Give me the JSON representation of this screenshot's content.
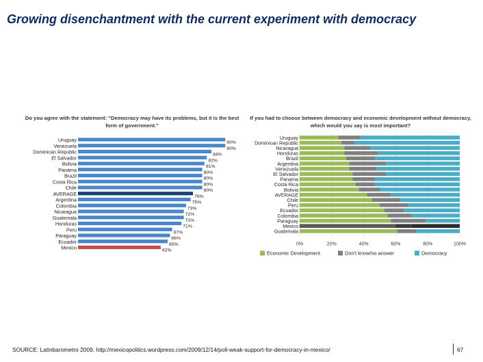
{
  "slide": {
    "title": "Growing disenchantment with the current experiment with democracy",
    "source": "SOURCE: Latinbarometro 2009, http://mexicopolitics.wordpress.com/2009/12/14/poll-weak-support-for-democracy-in-mexico/",
    "page_number": "67"
  },
  "colors": {
    "bar_blue": "#4a87c8",
    "bar_average": "#1d3f73",
    "bar_mexico": "#c0504d",
    "economic_development": "#9bbb59",
    "dont_know": "#7f7f7f",
    "democracy": "#4bacc6"
  },
  "chart_data": [
    {
      "type": "bar",
      "orientation": "horizontal",
      "title": "Do you agree with the statement: \"Democracy may have its problems, but it is the best form of government.\"",
      "categories": [
        "Uruguay",
        "Venezuela",
        "Dominican Republic",
        "El Salvador",
        "Bolivia",
        "Panama",
        "Brazil",
        "Costa Rica",
        "Chile",
        "AVERAGE",
        "Argentina",
        "Colombia",
        "Nicaragua",
        "Guatemala",
        "Honduras",
        "Peru",
        "Paraguay",
        "Ecuador",
        "Mexico"
      ],
      "values": [
        90,
        90,
        84,
        82,
        81,
        80,
        80,
        80,
        80,
        76,
        75,
        73,
        72,
        72,
        71,
        67,
        66,
        65,
        62
      ],
      "value_labels": [
        "90%",
        "90%",
        "84%",
        "82%",
        "81%",
        "80%",
        "80%",
        "80%",
        "80%",
        "76%",
        "75%",
        "73%",
        "72%",
        "72%",
        "71%",
        "67%",
        "66%",
        "65%",
        "62%"
      ],
      "highlight": {
        "AVERAGE": "average",
        "Mexico": "mexico"
      },
      "xlim": [
        0,
        100
      ],
      "grid": false
    },
    {
      "type": "bar",
      "orientation": "horizontal",
      "stacked": "percent",
      "title": "If you had to choose between democracy and economic development without democracy, which would you say is most important?",
      "categories": [
        "Uruguay",
        "Dominican Republic",
        "Nicaragua",
        "Honduras",
        "Brazil",
        "Argentina",
        "Venezuela",
        "El Salvador",
        "Panama",
        "Costa Rica",
        "Bolivia",
        "AVERAGE",
        "Chile",
        "Peru",
        "Ecuador",
        "Colombia",
        "Paraguay",
        "Mexico",
        "Guatemala"
      ],
      "series": [
        {
          "name": "Economic Development",
          "values": [
            24,
            26,
            28,
            28,
            29,
            31,
            31,
            33,
            33,
            35,
            37,
            42,
            45,
            50,
            53,
            55,
            57,
            60,
            61
          ]
        },
        {
          "name": "Don't know/no answer",
          "values": [
            14,
            8,
            16,
            21,
            18,
            23,
            17,
            21,
            14,
            12,
            13,
            15,
            18,
            18,
            12,
            15,
            22,
            10,
            12
          ]
        },
        {
          "name": "Democracy",
          "values": [
            62,
            66,
            56,
            51,
            53,
            46,
            52,
            46,
            53,
            53,
            50,
            43,
            37,
            32,
            35,
            30,
            21,
            30,
            27
          ]
        }
      ],
      "highlight": {
        "Mexico": "dark"
      },
      "x_ticks": [
        "0%",
        "20%",
        "40%",
        "60%",
        "80%",
        "100%"
      ],
      "xlim": [
        0,
        100
      ],
      "legend": "bottom",
      "grid": true
    }
  ]
}
